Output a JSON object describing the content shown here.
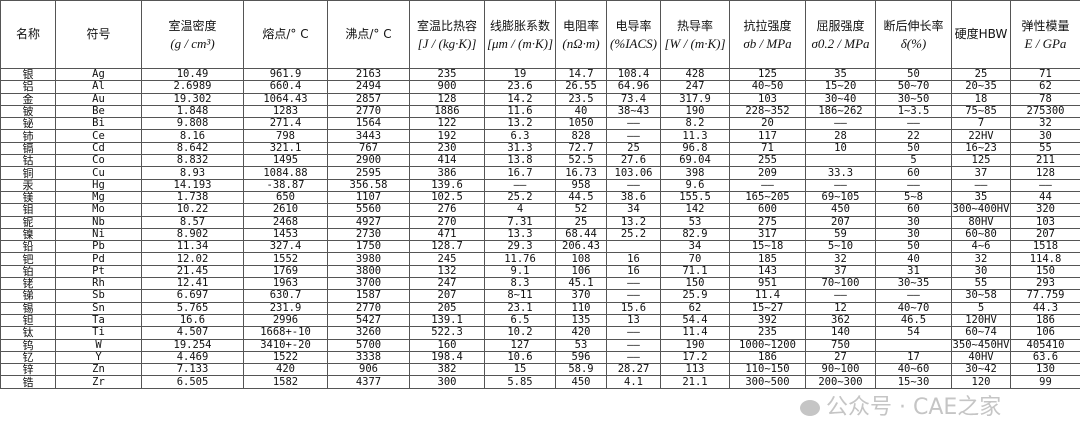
{
  "headers": [
    {
      "t": "名称",
      "u": ""
    },
    {
      "t": "符号",
      "u": ""
    },
    {
      "t": "室温密度",
      "u": "(g / cm³)"
    },
    {
      "t": "熔点/° C",
      "u": ""
    },
    {
      "t": "沸点/° C",
      "u": ""
    },
    {
      "t": "室温比热容",
      "u": "[J / (kg·K)]"
    },
    {
      "t": "线膨胀系数",
      "u": "[μm / (m·K)]"
    },
    {
      "t": "电阻率",
      "u": "(nΩ·m)"
    },
    {
      "t": "电导率",
      "u": "(%IACS)"
    },
    {
      "t": "热导率",
      "u": "[W / (m·K)]"
    },
    {
      "t": "抗拉强度",
      "u": "σb / MPa"
    },
    {
      "t": "屈服强度",
      "u": "σ0.2 / MPa"
    },
    {
      "t": "断后伸长率",
      "u": "δ(%)"
    },
    {
      "t": "硬度HBW",
      "u": ""
    },
    {
      "t": "弹性模量",
      "u": "E / GPa"
    }
  ],
  "rows": [
    [
      "银",
      "Ag",
      "10.49",
      "961.9",
      "2163",
      "235",
      "19",
      "14.7",
      "108.4",
      "428",
      "125",
      "35",
      "50",
      "25",
      "71"
    ],
    [
      "铝",
      "Al",
      "2.6989",
      "660.4",
      "2494",
      "900",
      "23.6",
      "26.55",
      "64.96",
      "247",
      "40~50",
      "15~20",
      "50~70",
      "20~35",
      "62"
    ],
    [
      "金",
      "Au",
      "19.302",
      "1064.43",
      "2857",
      "128",
      "14.2",
      "23.5",
      "73.4",
      "317.9",
      "103",
      "30~40",
      "30~50",
      "18",
      "78"
    ],
    [
      "铍",
      "Be",
      "1.848",
      "1283",
      "2770",
      "1886",
      "11.6",
      "40",
      "38~43",
      "190",
      "228~352",
      "186~262",
      "1~3.5",
      "75~85",
      "275300"
    ],
    [
      "铋",
      "Bi",
      "9.808",
      "271.4",
      "1564",
      "122",
      "13.2",
      "1050",
      "——",
      "8.2",
      "20",
      "——",
      "——",
      "7",
      "32"
    ],
    [
      "铈",
      "Ce",
      "8.16",
      "798",
      "3443",
      "192",
      "6.3",
      "828",
      "——",
      "11.3",
      "117",
      "28",
      "22",
      "22HV",
      "30"
    ],
    [
      "镉",
      "Cd",
      "8.642",
      "321.1",
      "767",
      "230",
      "31.3",
      "72.7",
      "25",
      "96.8",
      "71",
      "10",
      "50",
      "16~23",
      "55"
    ],
    [
      "钴",
      "Co",
      "8.832",
      "1495",
      "2900",
      "414",
      "13.8",
      "52.5",
      "27.6",
      "69.04",
      "255",
      "",
      "5",
      "125",
      "211"
    ],
    [
      "铜",
      "Cu",
      "8.93",
      "1084.88",
      "2595",
      "386",
      "16.7",
      "16.73",
      "103.06",
      "398",
      "209",
      "33.3",
      "60",
      "37",
      "128"
    ],
    [
      "汞",
      "Hg",
      "14.193",
      "-38.87",
      "356.58",
      "139.6",
      "——",
      "958",
      "——",
      "9.6",
      "——",
      "——",
      "——",
      "——",
      "——"
    ],
    [
      "镁",
      "Mg",
      "1.738",
      "650",
      "1107",
      "102.5",
      "25.2",
      "44.5",
      "38.6",
      "155.5",
      "165~205",
      "69~105",
      "5~8",
      "35",
      "44"
    ],
    [
      "钼",
      "Mo",
      "10.22",
      "2610",
      "5560",
      "276",
      "4",
      "52",
      "34",
      "142",
      "600",
      "450",
      "60",
      "300~400HV",
      "320"
    ],
    [
      "铌",
      "Nb",
      "8.57",
      "2468",
      "4927",
      "270",
      "7.31",
      "25",
      "13.2",
      "53",
      "275",
      "207",
      "30",
      "80HV",
      "103"
    ],
    [
      "镍",
      "Ni",
      "8.902",
      "1453",
      "2730",
      "471",
      "13.3",
      "68.44",
      "25.2",
      "82.9",
      "317",
      "59",
      "30",
      "60~80",
      "207"
    ],
    [
      "铅",
      "Pb",
      "11.34",
      "327.4",
      "1750",
      "128.7",
      "29.3",
      "206.43",
      "",
      "34",
      "15~18",
      "5~10",
      "50",
      "4~6",
      "1518"
    ],
    [
      "钯",
      "Pd",
      "12.02",
      "1552",
      "3980",
      "245",
      "11.76",
      "108",
      "16",
      "70",
      "185",
      "32",
      "40",
      "32",
      "114.8"
    ],
    [
      "铂",
      "Pt",
      "21.45",
      "1769",
      "3800",
      "132",
      "9.1",
      "106",
      "16",
      "71.1",
      "143",
      "37",
      "31",
      "30",
      "150"
    ],
    [
      "铑",
      "Rh",
      "12.41",
      "1963",
      "3700",
      "247",
      "8.3",
      "45.1",
      "——",
      "150",
      "951",
      "70~100",
      "30~35",
      "55",
      "293"
    ],
    [
      "锑",
      "Sb",
      "6.697",
      "630.7",
      "1587",
      "207",
      "8~11",
      "370",
      "——",
      "25.9",
      "11.4",
      "——",
      "——",
      "30~58",
      "77.759"
    ],
    [
      "锡",
      "Sn",
      "5.765",
      "231.9",
      "2770",
      "205",
      "23.1",
      "110",
      "15.6",
      "62",
      "15~27",
      "12",
      "40~70",
      "5",
      "44.3"
    ],
    [
      "钽",
      "Ta",
      "16.6",
      "2996",
      "5427",
      "139.1",
      "6.5",
      "135",
      "13",
      "54.4",
      "392",
      "362",
      "46.5",
      "120HV",
      "186"
    ],
    [
      "钛",
      "Ti",
      "4.507",
      "1668+-10",
      "3260",
      "522.3",
      "10.2",
      "420",
      "——",
      "11.4",
      "235",
      "140",
      "54",
      "60~74",
      "106"
    ],
    [
      "钨",
      "W",
      "19.254",
      "3410+-20",
      "5700",
      "160",
      "127",
      "53",
      "——",
      "190",
      "1000~1200",
      "750",
      "",
      "350~450HV",
      "405410"
    ],
    [
      "钇",
      "Y",
      "4.469",
      "1522",
      "3338",
      "198.4",
      "10.6",
      "596",
      "——",
      "17.2",
      "186",
      "27",
      "17",
      "40HV",
      "63.6"
    ],
    [
      "锌",
      "Zn",
      "7.133",
      "420",
      "906",
      "382",
      "15",
      "58.9",
      "28.27",
      "113",
      "110~150",
      "90~100",
      "40~60",
      "30~42",
      "130"
    ],
    [
      "锆",
      "Zr",
      "6.505",
      "1582",
      "4377",
      "300",
      "5.85",
      "450",
      "4.1",
      "21.1",
      "300~500",
      "200~300",
      "15~30",
      "120",
      "99"
    ]
  ],
  "watermark": "公众号 · CAE之家"
}
